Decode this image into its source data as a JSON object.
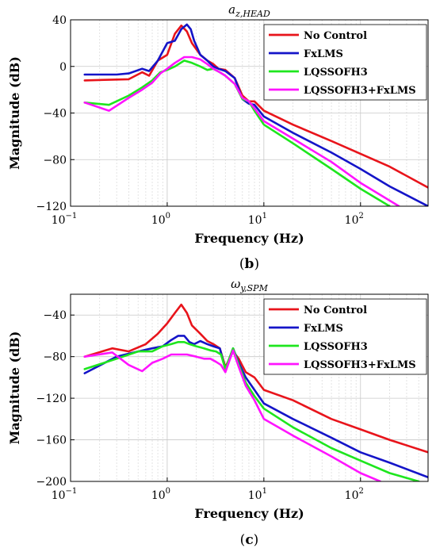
{
  "chart_data": [
    {
      "type": "line",
      "panel": "(b)",
      "caption": {
        "open": "(",
        "letter": "b",
        "close": ")"
      },
      "title": {
        "base": "a",
        "sub": "z,HEAD"
      },
      "xlabel": "Frequency (Hz)",
      "ylabel": "Magnitude (dB)",
      "xscale": "log",
      "xlim": [
        0.1,
        500
      ],
      "ylim": [
        -120,
        40
      ],
      "xticks": [
        {
          "v": 0.1,
          "base": "10",
          "exp": "−1"
        },
        {
          "v": 1,
          "base": "10",
          "exp": "0"
        },
        {
          "v": 10,
          "base": "10",
          "exp": "1"
        },
        {
          "v": 100,
          "base": "10",
          "exp": "2"
        }
      ],
      "yticks": [
        {
          "v": 40,
          "label": "40"
        },
        {
          "v": 0,
          "label": "0"
        },
        {
          "v": -40,
          "label": "−40"
        },
        {
          "v": -80,
          "label": "−80"
        },
        {
          "v": -120,
          "label": "−120"
        }
      ],
      "grid": true,
      "legend": "top-right",
      "series": [
        {
          "name": "No Control",
          "color": "#e8141b",
          "x": [
            0.14,
            0.4,
            0.55,
            0.65,
            0.8,
            1.0,
            1.2,
            1.4,
            1.6,
            1.8,
            2.2,
            2.6,
            3.0,
            3.4,
            4.0,
            5.0,
            6.0,
            7.0,
            8.0,
            10,
            20,
            50,
            100,
            200,
            500
          ],
          "y": [
            -12,
            -11,
            -5,
            -8,
            5,
            10,
            28,
            35,
            30,
            20,
            10,
            5,
            2,
            -2,
            -3,
            -10,
            -25,
            -30,
            -30,
            -38,
            -50,
            -64,
            -75,
            -86,
            -104
          ]
        },
        {
          "name": "FxLMS",
          "color": "#1414c8",
          "x": [
            0.14,
            0.3,
            0.4,
            0.55,
            0.65,
            0.8,
            1.0,
            1.2,
            1.4,
            1.6,
            1.75,
            1.9,
            2.2,
            2.6,
            3.0,
            3.4,
            4.0,
            5.0,
            6.0,
            7.0,
            8.0,
            10,
            20,
            50,
            100,
            200,
            500
          ],
          "y": [
            -7,
            -7,
            -6,
            -2,
            -4,
            5,
            20,
            22,
            32,
            36,
            32,
            22,
            10,
            5,
            0,
            -2,
            -4,
            -10,
            -28,
            -32,
            -33,
            -43,
            -57,
            -74,
            -88,
            -103,
            -120
          ]
        },
        {
          "name": "LQSSOFH3",
          "color": "#1ee61e",
          "x": [
            0.14,
            0.25,
            0.4,
            0.55,
            0.7,
            0.85,
            1.0,
            1.2,
            1.5,
            1.8,
            2.2,
            2.6,
            3.0,
            3.5,
            4.0,
            5.0,
            6.0,
            7.0,
            8.0,
            10,
            20,
            50,
            100,
            200
          ],
          "y": [
            -31,
            -33,
            -25,
            -18,
            -12,
            -5,
            -3,
            0,
            5,
            3,
            0,
            -3,
            -2,
            -5,
            -8,
            -15,
            -28,
            -30,
            -38,
            -50,
            -66,
            -88,
            -105,
            -120
          ]
        },
        {
          "name": "LQSSOFH3+FxLMS",
          "color": "#ff14ff",
          "x": [
            0.14,
            0.25,
            0.4,
            0.55,
            0.7,
            0.85,
            1.0,
            1.2,
            1.5,
            1.8,
            2.2,
            2.6,
            3.0,
            3.5,
            4.0,
            5.0,
            6.0,
            7.0,
            8.0,
            10,
            20,
            50,
            100,
            250
          ],
          "y": [
            -31,
            -38,
            -27,
            -20,
            -14,
            -6,
            -2,
            3,
            8,
            8,
            6,
            2,
            -2,
            -5,
            -8,
            -15,
            -27,
            -30,
            -36,
            -47,
            -62,
            -82,
            -100,
            -120
          ]
        }
      ]
    },
    {
      "type": "line",
      "panel": "(c)",
      "caption": {
        "open": "(",
        "letter": "c",
        "close": ")"
      },
      "title": {
        "base": "ω",
        "sub": "y,SPM"
      },
      "xlabel": "Frequency (Hz)",
      "ylabel": "Magnitude (dB)",
      "xscale": "log",
      "xlim": [
        0.1,
        500
      ],
      "ylim": [
        -200,
        -20
      ],
      "xticks": [
        {
          "v": 0.1,
          "base": "10",
          "exp": "−1"
        },
        {
          "v": 1,
          "base": "10",
          "exp": "0"
        },
        {
          "v": 10,
          "base": "10",
          "exp": "1"
        },
        {
          "v": 100,
          "base": "10",
          "exp": "2"
        }
      ],
      "yticks": [
        {
          "v": -40,
          "label": "−40"
        },
        {
          "v": -80,
          "label": "−80"
        },
        {
          "v": -120,
          "label": "−120"
        },
        {
          "v": -160,
          "label": "−160"
        },
        {
          "v": -200,
          "label": "−200"
        }
      ],
      "grid": true,
      "legend": "top-right",
      "series": [
        {
          "name": "No Control",
          "color": "#e8141b",
          "x": [
            0.14,
            0.27,
            0.4,
            0.6,
            0.8,
            1.0,
            1.2,
            1.4,
            1.6,
            1.8,
            2.2,
            2.6,
            3.0,
            3.5,
            4.0,
            4.8,
            5.5,
            6.5,
            8.0,
            10,
            20,
            50,
            100,
            200,
            500
          ],
          "y": [
            -80,
            -72,
            -75,
            -68,
            -58,
            -48,
            -38,
            -30,
            -38,
            -50,
            -58,
            -65,
            -68,
            -72,
            -90,
            -75,
            -82,
            -95,
            -100,
            -112,
            -122,
            -140,
            -150,
            -160,
            -172
          ]
        },
        {
          "name": "FxLMS",
          "color": "#1414c8",
          "x": [
            0.14,
            0.3,
            0.5,
            0.7,
            0.9,
            1.1,
            1.3,
            1.5,
            1.7,
            1.9,
            2.2,
            2.6,
            3.0,
            3.5,
            4.0,
            4.8,
            5.5,
            6.5,
            8.0,
            10,
            20,
            50,
            100,
            200,
            500
          ],
          "y": [
            -96,
            -80,
            -75,
            -72,
            -70,
            -64,
            -60,
            -60,
            -66,
            -68,
            -65,
            -68,
            -70,
            -72,
            -92,
            -72,
            -86,
            -100,
            -112,
            -125,
            -140,
            -158,
            -172,
            -182,
            -196
          ]
        },
        {
          "name": "LQSSOFH3",
          "color": "#1ee61e",
          "x": [
            0.14,
            0.3,
            0.5,
            0.7,
            0.9,
            1.1,
            1.3,
            1.5,
            1.7,
            2.0,
            2.4,
            2.8,
            3.2,
            3.6,
            4.0,
            4.8,
            5.5,
            6.5,
            8.0,
            10,
            20,
            50,
            100,
            200,
            400
          ],
          "y": [
            -92,
            -82,
            -75,
            -75,
            -70,
            -68,
            -66,
            -66,
            -68,
            -70,
            -72,
            -74,
            -75,
            -78,
            -92,
            -72,
            -88,
            -105,
            -118,
            -130,
            -148,
            -168,
            -180,
            -192,
            -200
          ]
        },
        {
          "name": "LQSSOFH3+FxLMS",
          "color": "#ff14ff",
          "x": [
            0.14,
            0.27,
            0.4,
            0.55,
            0.7,
            0.9,
            1.1,
            1.3,
            1.6,
            2.0,
            2.4,
            2.8,
            3.2,
            3.6,
            4.0,
            4.8,
            5.5,
            6.5,
            8.0,
            10,
            20,
            50,
            100,
            160
          ],
          "y": [
            -80,
            -76,
            -88,
            -94,
            -86,
            -82,
            -78,
            -78,
            -78,
            -80,
            -82,
            -82,
            -85,
            -88,
            -95,
            -74,
            -90,
            -108,
            -122,
            -140,
            -156,
            -176,
            -192,
            -200
          ]
        }
      ]
    }
  ]
}
